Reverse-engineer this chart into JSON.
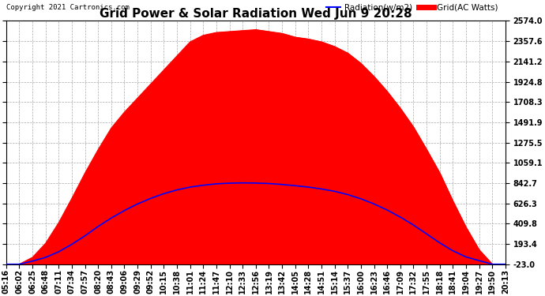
{
  "title": "Grid Power & Solar Radiation Wed Jun 9 20:28",
  "copyright": "Copyright 2021 Cartronics.com",
  "legend_radiation": "Radiation(w/m2)",
  "legend_grid": "Grid(AC Watts)",
  "ymin": -23.0,
  "ymax": 2574.0,
  "yticks": [
    2574.0,
    2357.6,
    2141.2,
    1924.8,
    1708.3,
    1491.9,
    1275.5,
    1059.1,
    842.7,
    626.3,
    409.8,
    193.4,
    -23.0
  ],
  "background_color": "#ffffff",
  "plot_background": "#ffffff",
  "grid_color": "#aaaaaa",
  "radiation_color": "#0000ff",
  "grid_fill_color": "#ff0000",
  "title_fontsize": 11,
  "tick_fontsize": 7,
  "xtick_labels": [
    "05:16",
    "06:02",
    "06:25",
    "06:48",
    "07:11",
    "07:34",
    "07:57",
    "08:20",
    "08:43",
    "09:06",
    "09:29",
    "09:52",
    "10:15",
    "10:38",
    "11:01",
    "11:24",
    "11:47",
    "12:10",
    "12:33",
    "12:56",
    "13:19",
    "13:42",
    "14:05",
    "14:28",
    "14:51",
    "15:14",
    "15:37",
    "16:00",
    "16:23",
    "16:46",
    "17:09",
    "17:32",
    "17:55",
    "18:18",
    "18:41",
    "19:04",
    "19:27",
    "19:50",
    "20:13"
  ],
  "n_points": 39,
  "grid_power": [
    -23,
    -23,
    50,
    200,
    420,
    680,
    950,
    1200,
    1430,
    1600,
    1750,
    1900,
    2050,
    2200,
    2350,
    2420,
    2450,
    2460,
    2470,
    2480,
    2460,
    2440,
    2400,
    2380,
    2350,
    2300,
    2230,
    2120,
    1980,
    1820,
    1640,
    1440,
    1200,
    950,
    650,
    370,
    130,
    -23,
    -23
  ],
  "radiation": [
    -23,
    -23,
    10,
    50,
    110,
    190,
    280,
    380,
    470,
    550,
    620,
    680,
    730,
    770,
    800,
    820,
    835,
    842,
    845,
    843,
    838,
    828,
    815,
    800,
    780,
    755,
    720,
    675,
    620,
    555,
    480,
    395,
    300,
    205,
    120,
    55,
    15,
    -23,
    -23
  ]
}
